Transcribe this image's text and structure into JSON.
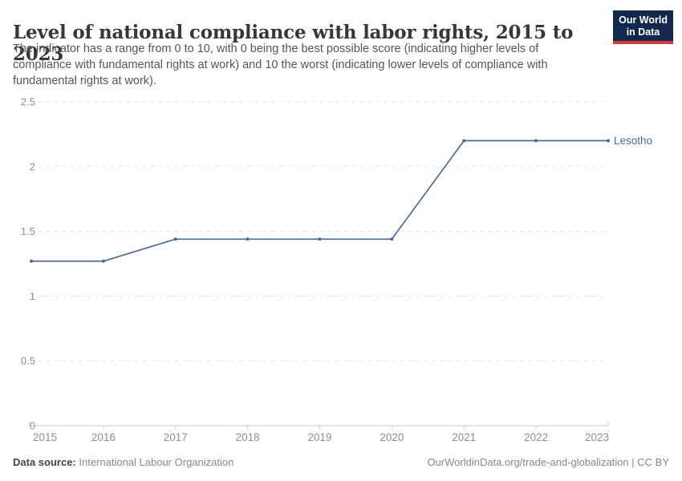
{
  "header": {
    "title": "Level of national compliance with labor rights, 2015 to 2023",
    "subtitle_lines": [
      "The indicator has a range from 0 to 10, with 0 being the best possible score (indicating higher levels of",
      "compliance with fundamental rights at work) and 10 the worst (indicating lower levels of compliance with",
      "fundamental rights at work)."
    ],
    "logo": {
      "line1": "Our World",
      "line2": "in Data",
      "bg_color": "#12294b",
      "accent_color": "#cf3a3e"
    }
  },
  "chart_data": {
    "type": "line",
    "title": "Level of national compliance with labor rights, 2015 to 2023",
    "x": [
      2015,
      2016,
      2017,
      2018,
      2019,
      2020,
      2021,
      2022,
      2023
    ],
    "series": [
      {
        "name": "Lesotho",
        "color": "#4c6a9c",
        "values": [
          1.27,
          1.27,
          1.44,
          1.44,
          1.44,
          1.44,
          2.2,
          2.2,
          2.2
        ]
      }
    ],
    "ylim": [
      0,
      2.5
    ],
    "yticks": [
      0,
      0.5,
      1,
      1.5,
      2,
      2.5
    ],
    "ytick_labels": [
      "0",
      "0.5",
      "1",
      "1.5",
      "2",
      "2.5"
    ],
    "xtick_labels": [
      "2015",
      "2016",
      "2017",
      "2018",
      "2019",
      "2020",
      "2021",
      "2022",
      "2023"
    ],
    "grid": "horizontal-dashed",
    "legend_position": "line-end-label",
    "colors": {
      "grid": "#e3e3e3",
      "axis_line": "#c9c9c9",
      "axis_text": "#8f8f8f"
    }
  },
  "footer": {
    "source_label": "Data source:",
    "source_value": " International Labour Organization",
    "credit": "OurWorldinData.org/trade-and-globalization | CC BY"
  }
}
